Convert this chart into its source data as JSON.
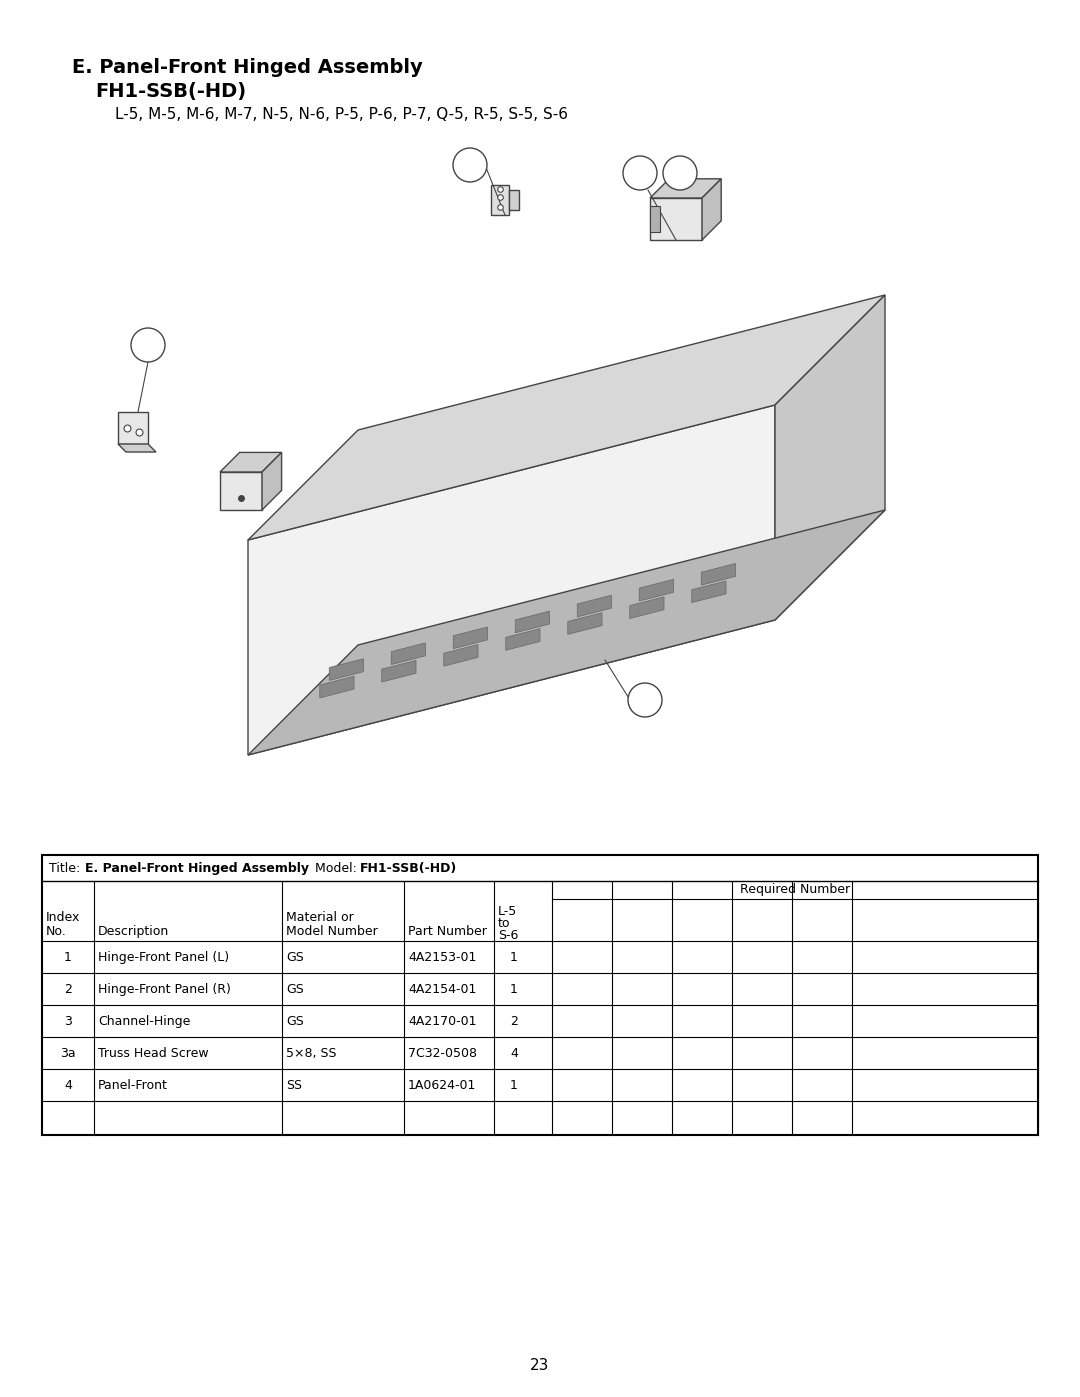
{
  "title_line1": "E. Panel-Front Hinged Assembly",
  "title_line2": "    FH1-SSB(-HD)",
  "subtitle": "    L-5, M-5, M-6, M-7, N-5, N-6, P-5, P-6, P-7, Q-5, R-5, S-5, S-6",
  "page_number": "23",
  "table_rows": [
    [
      "1",
      "Hinge-Front Panel (L)",
      "GS",
      "4A2153-01",
      "1"
    ],
    [
      "2",
      "Hinge-Front Panel (R)",
      "GS",
      "4A2154-01",
      "1"
    ],
    [
      "3",
      "Channel-Hinge",
      "GS",
      "4A2170-01",
      "2"
    ],
    [
      "3a",
      "Truss Head Screw",
      "5×8, SS",
      "7C32-0508",
      "4"
    ],
    [
      "4",
      "Panel-Front",
      "SS",
      "1A0624-01",
      "1"
    ]
  ],
  "required_number_label": "Required Number",
  "background_color": "#ffffff",
  "line_color": "#000000",
  "text_color": "#000000"
}
